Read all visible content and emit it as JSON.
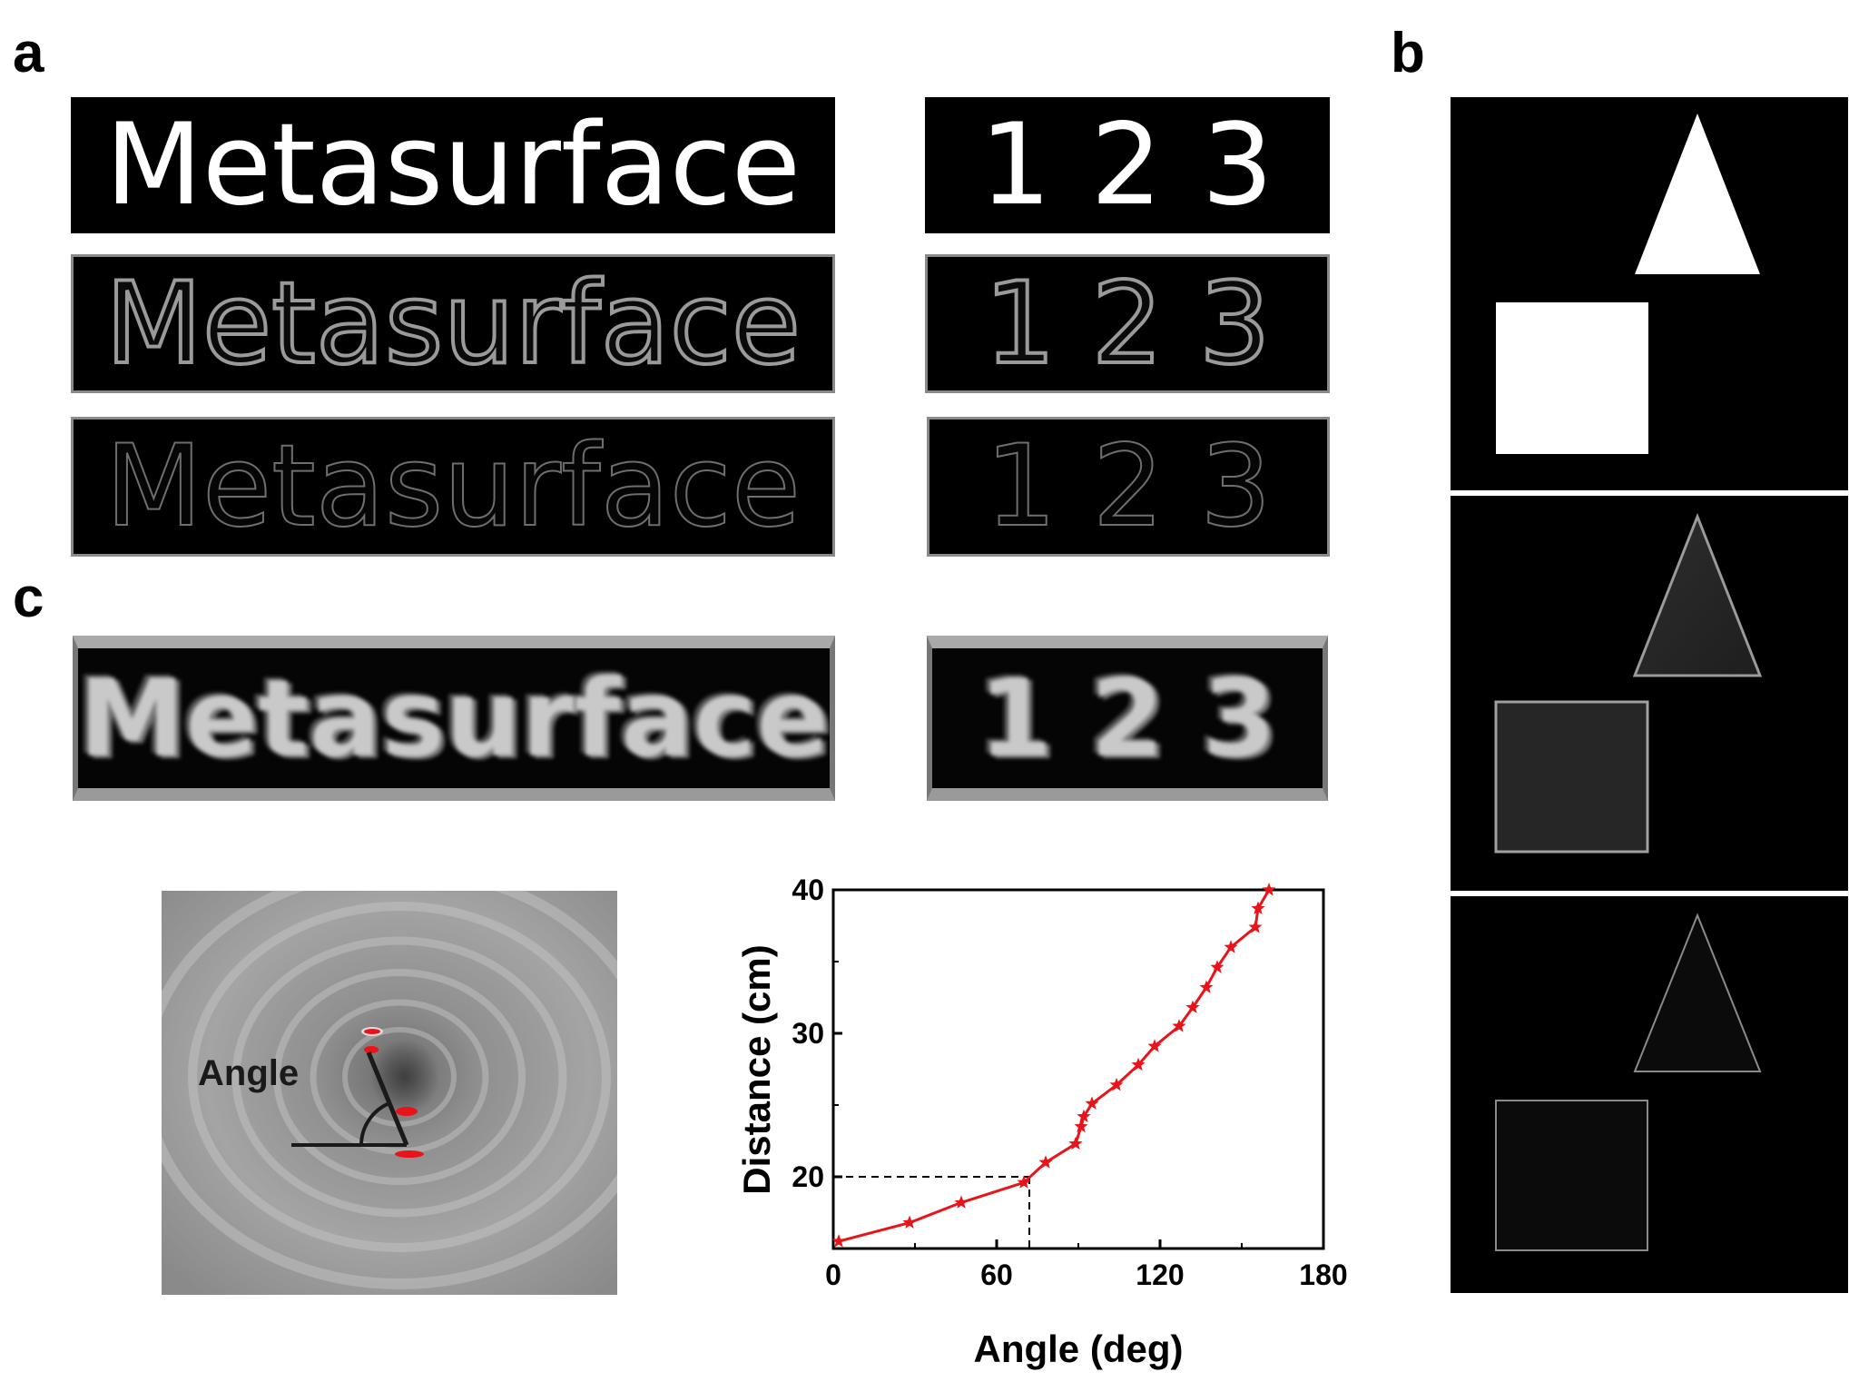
{
  "panels": {
    "a": "a",
    "b": "b",
    "c": "c"
  },
  "panel_a": {
    "word": "Metasurface",
    "digits": "1 2 3"
  },
  "panel_c": {
    "word": "Metasurface",
    "digits": "1 2 3",
    "angle_label": "Angle"
  },
  "colors": {
    "curve": "#e8141a",
    "tile_background": "#000000"
  },
  "chart_data": {
    "type": "line",
    "xlabel": "Angle (deg)",
    "ylabel": "Distance (cm)",
    "xlim": [
      0,
      180
    ],
    "ylim": [
      15,
      40
    ],
    "xticks": [
      0,
      60,
      120,
      180
    ],
    "yticks": [
      20,
      30,
      40
    ],
    "series": [
      {
        "marker": "star",
        "x": [
          2,
          28,
          47,
          70,
          78,
          89,
          91,
          92,
          95,
          104,
          112,
          118,
          127,
          132,
          137,
          141,
          146,
          155,
          156,
          160
        ],
        "y": [
          15.5,
          16.8,
          18.2,
          19.6,
          21.0,
          22.3,
          23.5,
          24.2,
          25.1,
          26.4,
          27.8,
          29.1,
          30.5,
          31.8,
          33.2,
          34.6,
          36.0,
          37.4,
          38.7,
          40.0
        ]
      }
    ],
    "reference_lines": {
      "x": 72,
      "y": 20,
      "style": "dashed"
    }
  }
}
